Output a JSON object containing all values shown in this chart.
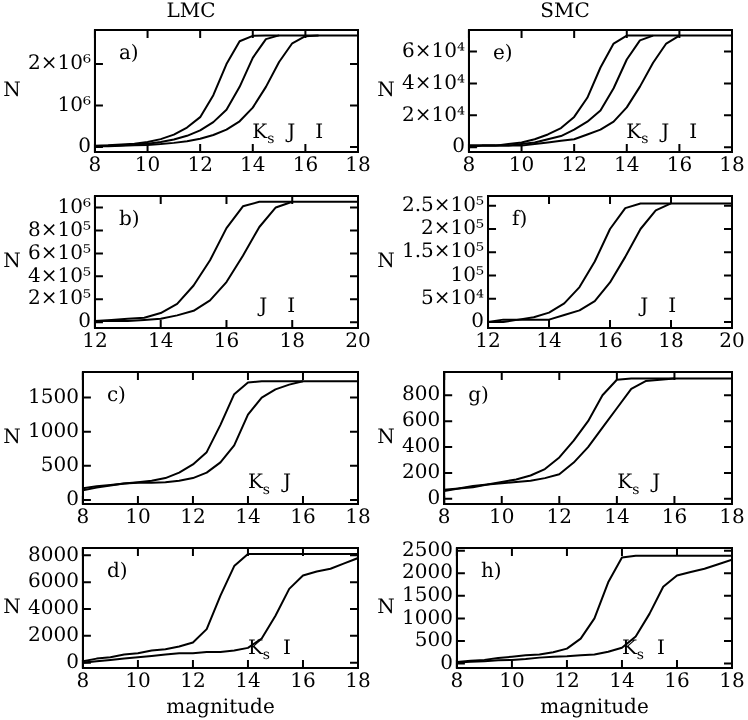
{
  "chart_data": [
    {
      "type": "line",
      "title": "LMC",
      "ylabel": "N",
      "x": [
        8,
        8.5,
        9,
        9.5,
        10,
        10.5,
        11,
        11.5,
        12,
        12.5,
        13,
        13.5,
        14,
        14.5,
        15,
        15.5,
        16,
        16.5,
        17,
        17.5,
        18
      ],
      "series": [
        {
          "color": "#000000",
          "values": [
            30000,
            40000,
            60000,
            80000,
            120000,
            190000,
            300000,
            470000,
            720000,
            1250000,
            2000000,
            2550000,
            2680000,
            2690000,
            2690000,
            2690000,
            2690000,
            2690000,
            2690000,
            2690000,
            2690000
          ]
        },
        {
          "color": "#000000",
          "values": [
            20000,
            30000,
            40000,
            60000,
            80000,
            120000,
            180000,
            270000,
            400000,
            600000,
            900000,
            1450000,
            2150000,
            2600000,
            2690000,
            null,
            null,
            null,
            null,
            null,
            null
          ]
        },
        {
          "color": "#000000",
          "values": [
            20000,
            20000,
            30000,
            40000,
            50000,
            70000,
            100000,
            140000,
            200000,
            290000,
            420000,
            620000,
            950000,
            1450000,
            2050000,
            2500000,
            2670000,
            2690000,
            null,
            null,
            null
          ]
        }
      ],
      "xlim": [
        8,
        18
      ],
      "xticks": [
        8,
        10,
        12,
        14,
        16,
        18
      ],
      "ylim": [
        -120000,
        2820000
      ],
      "yticks": [
        0,
        {
          "value": 1000000,
          "label": "10⁶"
        },
        {
          "value": 2000000,
          "label": "2×10⁶"
        }
      ],
      "annotations": [
        "a)",
        "K$_{s}$",
        "J",
        "I"
      ]
    },
    {
      "type": "line",
      "title": "SMC",
      "ylabel": "N",
      "x": [
        8,
        8.5,
        9,
        9.5,
        10,
        10.5,
        11,
        11.5,
        12,
        12.5,
        13,
        13.5,
        14,
        14.5,
        15,
        15.5,
        16,
        16.5,
        17,
        17.5,
        18
      ],
      "series": [
        {
          "color": "#000000",
          "values": [
            1000,
            1000,
            1000,
            2000,
            3000,
            5000,
            8000,
            12000,
            19000,
            31000,
            50000,
            65000,
            70000,
            70000,
            70000,
            70000,
            70000,
            70000,
            70000,
            70000,
            70000
          ]
        },
        {
          "color": "#000000",
          "values": [
            1000,
            1000,
            1000,
            1000,
            2000,
            3000,
            5000,
            7000,
            11000,
            16000,
            23000,
            37000,
            55000,
            67000,
            70000,
            null,
            null,
            null,
            null,
            null,
            null
          ]
        },
        {
          "color": "#000000",
          "values": [
            0,
            1000,
            1000,
            1000,
            1000,
            2000,
            3000,
            4000,
            5000,
            8000,
            11000,
            16000,
            25000,
            38000,
            53000,
            65000,
            70000,
            null,
            null,
            null,
            null
          ]
        }
      ],
      "xlim": [
        8,
        18
      ],
      "xticks": [
        8,
        10,
        12,
        14,
        16,
        18
      ],
      "ylim": [
        -3000,
        73500
      ],
      "yticks": [
        0,
        {
          "value": 20000,
          "label": "2×10⁴"
        },
        {
          "value": 40000,
          "label": "4×10⁴"
        },
        {
          "value": 60000,
          "label": "6×10⁴"
        }
      ],
      "annotations": [
        "e)",
        "K$_{s}$",
        "J",
        "I"
      ]
    },
    {
      "type": "line",
      "ylabel": "N",
      "x": [
        12,
        12.5,
        13,
        13.5,
        14,
        14.5,
        15,
        15.5,
        16,
        16.5,
        17,
        17.5,
        18,
        18.5,
        19,
        19.5,
        20
      ],
      "series": [
        {
          "color": "#000000",
          "values": [
            10000,
            20000,
            30000,
            40000,
            80000,
            160000,
            320000,
            540000,
            820000,
            1010000,
            1050000,
            1050000,
            1050000,
            1050000,
            1050000,
            1050000,
            1050000
          ]
        },
        {
          "color": "#000000",
          "values": [
            10000,
            10000,
            10000,
            20000,
            30000,
            60000,
            100000,
            190000,
            350000,
            580000,
            830000,
            1000000,
            1050000,
            null,
            null,
            null,
            null
          ]
        }
      ],
      "xlim": [
        12,
        20
      ],
      "xticks": [
        12,
        14,
        16,
        18,
        20
      ],
      "ylim": [
        -50000,
        1100000
      ],
      "yticks": [
        0,
        {
          "value": 200000,
          "label": "2×10⁵"
        },
        {
          "value": 400000,
          "label": "4×10⁵"
        },
        {
          "value": 600000,
          "label": "6×10⁵"
        },
        {
          "value": 800000,
          "label": "8×10⁵"
        },
        {
          "value": 1000000,
          "label": "10⁶"
        }
      ],
      "annotations": [
        "b)",
        "J",
        "I"
      ]
    },
    {
      "type": "line",
      "ylabel": "N",
      "x": [
        12,
        12.5,
        13,
        13.5,
        14,
        14.5,
        15,
        15.5,
        16,
        16.5,
        17,
        17.5,
        18,
        18.5,
        19,
        19.5,
        20
      ],
      "series": [
        {
          "color": "#000000",
          "values": [
            0,
            5000,
            5000,
            10000,
            20000,
            40000,
            75000,
            130000,
            200000,
            245000,
            255000,
            255000,
            255000,
            255000,
            255000,
            255000,
            255000
          ]
        },
        {
          "color": "#000000",
          "values": [
            0,
            0,
            5000,
            5000,
            5000,
            15000,
            25000,
            45000,
            85000,
            140000,
            200000,
            240000,
            255000,
            null,
            null,
            null,
            null
          ]
        }
      ],
      "xlim": [
        12,
        20
      ],
      "xticks": [
        12,
        14,
        16,
        18,
        20
      ],
      "ylim": [
        -13000,
        271000
      ],
      "yticks": [
        0,
        {
          "value": 50000,
          "label": "5×10⁴"
        },
        {
          "value": 100000,
          "label": "10⁵"
        },
        {
          "value": 150000,
          "label": "1.5×10⁵"
        },
        {
          "value": 200000,
          "label": "2×10⁵"
        },
        {
          "value": 250000,
          "label": "2.5×10⁵"
        }
      ],
      "annotations": [
        "f)",
        "J",
        "I"
      ]
    },
    {
      "type": "line",
      "ylabel": "N",
      "x": [
        8,
        8.5,
        9,
        9.5,
        10,
        10.5,
        11,
        11.5,
        12,
        12.5,
        13,
        13.5,
        14,
        14.5,
        15,
        15.5,
        16,
        16.5,
        17,
        17.5,
        18
      ],
      "series": [
        {
          "color": "#000000",
          "values": [
            170,
            200,
            220,
            240,
            260,
            280,
            320,
            400,
            520,
            700,
            1100,
            1550,
            1720,
            1740,
            1740,
            1740,
            1740,
            1740,
            1740,
            1740,
            1740
          ]
        },
        {
          "color": "#000000",
          "values": [
            140,
            180,
            210,
            240,
            250,
            250,
            260,
            280,
            320,
            400,
            550,
            800,
            1250,
            1500,
            1620,
            1690,
            1740,
            null,
            null,
            null,
            null
          ]
        }
      ],
      "xlim": [
        8,
        18
      ],
      "xticks": [
        8,
        10,
        12,
        14,
        16,
        18
      ],
      "ylim": [
        -60,
        1875
      ],
      "yticks": [
        0,
        500,
        1000,
        1500
      ],
      "annotations": [
        "c)",
        "K$_{s}$",
        "J"
      ]
    },
    {
      "type": "line",
      "ylabel": "N",
      "x": [
        8,
        8.5,
        9,
        9.5,
        10,
        10.5,
        11,
        11.5,
        12,
        12.5,
        13,
        13.5,
        14,
        14.5,
        15,
        15.5,
        16,
        16.5,
        17,
        17.5,
        18
      ],
      "series": [
        {
          "color": "#000000",
          "values": [
            70,
            80,
            100,
            110,
            130,
            150,
            180,
            230,
            320,
            450,
            600,
            800,
            920,
            930,
            930,
            930,
            930,
            930,
            930,
            930,
            930
          ]
        },
        {
          "color": "#000000",
          "values": [
            60,
            80,
            90,
            110,
            120,
            130,
            140,
            160,
            190,
            280,
            400,
            550,
            700,
            850,
            910,
            920,
            930,
            null,
            null,
            null,
            null
          ]
        }
      ],
      "xlim": [
        8,
        18
      ],
      "xticks": [
        8,
        10,
        12,
        14,
        16,
        18
      ],
      "ylim": [
        -40,
        980
      ],
      "yticks": [
        0,
        200,
        400,
        600,
        800
      ],
      "annotations": [
        "g)",
        "K$_{s}$",
        "J"
      ]
    },
    {
      "type": "line",
      "xlabel": "magnitude",
      "ylabel": "N",
      "x": [
        8,
        8.5,
        9,
        9.5,
        10,
        10.5,
        11,
        11.5,
        12,
        12.5,
        13,
        13.5,
        14,
        14.5,
        15,
        15.5,
        16,
        16.5,
        17,
        17.5,
        18
      ],
      "series": [
        {
          "color": "#000000",
          "values": [
            100,
            300,
            400,
            600,
            700,
            900,
            1000,
            1200,
            1500,
            2500,
            5000,
            7200,
            8100,
            8100,
            8100,
            8100,
            8100,
            8100,
            8100,
            8100,
            8100
          ]
        },
        {
          "color": "#000000",
          "values": [
            0,
            100,
            200,
            300,
            400,
            500,
            600,
            700,
            700,
            800,
            800,
            900,
            1100,
            1800,
            3500,
            5500,
            6500,
            6800,
            7000,
            7400,
            7800
          ]
        }
      ],
      "xlim": [
        8,
        18
      ],
      "xticks": [
        8,
        10,
        12,
        14,
        16,
        18
      ],
      "ylim": [
        -400,
        8550
      ],
      "yticks": [
        0,
        2000,
        4000,
        6000,
        8000
      ],
      "annotations": [
        "d)",
        "K$_{s}$",
        "I"
      ]
    },
    {
      "type": "line",
      "xlabel": "magnitude",
      "ylabel": "N",
      "x": [
        8,
        8.5,
        9,
        9.5,
        10,
        10.5,
        11,
        11.5,
        12,
        12.5,
        13,
        13.5,
        14,
        14.5,
        15,
        15.5,
        16,
        16.5,
        17,
        17.5,
        18
      ],
      "series": [
        {
          "color": "#000000",
          "values": [
            30,
            60,
            80,
            120,
            150,
            180,
            200,
            250,
            330,
            550,
            1000,
            1800,
            2350,
            2390,
            2390,
            2390,
            2390,
            2390,
            2390,
            2390,
            2390
          ]
        },
        {
          "color": "#000000",
          "values": [
            20,
            40,
            50,
            70,
            80,
            100,
            130,
            150,
            160,
            180,
            200,
            260,
            350,
            600,
            1100,
            1700,
            1950,
            2030,
            2100,
            2200,
            2300
          ]
        }
      ],
      "xlim": [
        8,
        18
      ],
      "xticks": [
        8,
        10,
        12,
        14,
        16,
        18
      ],
      "ylim": [
        -100,
        2560
      ],
      "yticks": [
        0,
        500,
        1000,
        1500,
        2000,
        2500
      ],
      "annotations": [
        "h)",
        "K$_{s}$",
        "I"
      ]
    }
  ]
}
